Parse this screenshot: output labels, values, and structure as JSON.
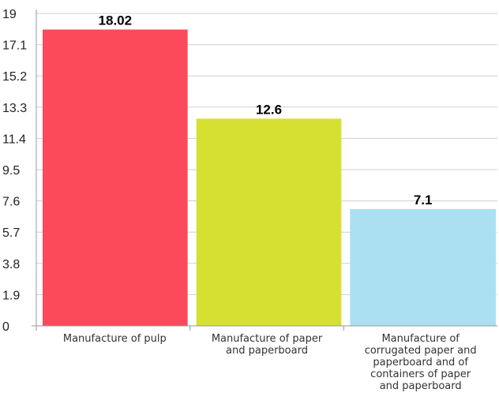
{
  "chart_data": {
    "type": "bar",
    "title": "",
    "xlabel": "",
    "ylabel": "",
    "ylim": [
      0,
      19
    ],
    "yticks": [
      0,
      1.9,
      3.8,
      5.7,
      7.6,
      9.5,
      11.4,
      13.3,
      15.2,
      17.1,
      19
    ],
    "ytick_labels": [
      "0",
      "1.9",
      "3.8",
      "5.7",
      "7.6",
      "9.5",
      "11.4",
      "13.3",
      "15.2",
      "17.1",
      "19"
    ],
    "grid": true,
    "legend": "none",
    "categories": [
      "Manufacture of pulp",
      "Manufacture of paper and paperboard",
      "Manufacture of corrugated paper and paperboard and of containers of paper and paperboard"
    ],
    "category_label_lines": [
      [
        "Manufacture of pulp"
      ],
      [
        "Manufacture of paper",
        "and paperboard"
      ],
      [
        "Manufacture of",
        "corrugated paper and",
        "paperboard and of",
        "containers of paper",
        "and paperboard"
      ]
    ],
    "values": [
      18.02,
      12.6,
      7.1
    ],
    "value_labels": [
      "18.02",
      "12.6",
      "7.1"
    ],
    "colors": [
      "#fc4a5b",
      "#d6e032",
      "#aae0f2"
    ]
  }
}
